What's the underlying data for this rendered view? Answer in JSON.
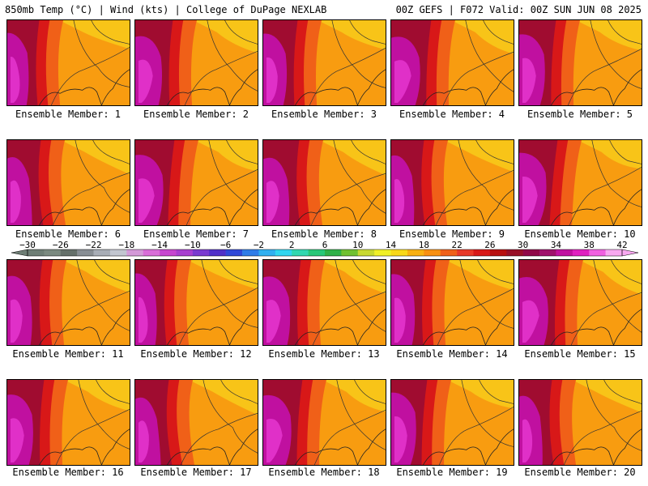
{
  "header": {
    "left_title": "850mb Temp (°C) | Wind (kts) | College of DuPage NEXLAB",
    "right_title": "00Z GEFS | F072 Valid: 00Z SUN JUN 08 2025"
  },
  "chart_data": {
    "type": "heatmap",
    "variable": "850mb Temp (°C)",
    "colorbar": {
      "ticks": [
        -30,
        -26,
        -22,
        -18,
        -14,
        -10,
        -6,
        -2,
        2,
        6,
        10,
        14,
        18,
        22,
        26,
        30,
        34,
        38,
        42
      ],
      "colors": [
        "#6e7e75",
        "#7b8a80",
        "#65706a",
        "#888e94",
        "#a8adb6",
        "#c2c6d0",
        "#d49ad8",
        "#d96ed8",
        "#c746d0",
        "#a83fd0",
        "#7a3ad0",
        "#5030c8",
        "#3048d8",
        "#2f7ce8",
        "#30b0f0",
        "#30d6f0",
        "#30d8b0",
        "#28c878",
        "#30b048",
        "#70c030",
        "#c8d830",
        "#f0f028",
        "#f8d818",
        "#f8b010",
        "#f89010",
        "#f06018",
        "#e83828",
        "#d81818",
        "#b81010",
        "#981028",
        "#900848",
        "#a0106c",
        "#c010a0",
        "#e020c0",
        "#f060e0",
        "#f8a8f0"
      ]
    },
    "panels": [
      {
        "label": "Ensemble Member: 1"
      },
      {
        "label": "Ensemble Member: 2"
      },
      {
        "label": "Ensemble Member: 3"
      },
      {
        "label": "Ensemble Member: 4"
      },
      {
        "label": "Ensemble Member: 5"
      },
      {
        "label": "Ensemble Member: 6"
      },
      {
        "label": "Ensemble Member: 7"
      },
      {
        "label": "Ensemble Member: 8"
      },
      {
        "label": "Ensemble Member: 9"
      },
      {
        "label": "Ensemble Member: 10"
      },
      {
        "label": "Ensemble Member: 11"
      },
      {
        "label": "Ensemble Member: 12"
      },
      {
        "label": "Ensemble Member: 13"
      },
      {
        "label": "Ensemble Member: 14"
      },
      {
        "label": "Ensemble Member: 15"
      },
      {
        "label": "Ensemble Member: 16"
      },
      {
        "label": "Ensemble Member: 17"
      },
      {
        "label": "Ensemble Member: 18"
      },
      {
        "label": "Ensemble Member: 19"
      },
      {
        "label": "Ensemble Member: 20"
      }
    ]
  }
}
